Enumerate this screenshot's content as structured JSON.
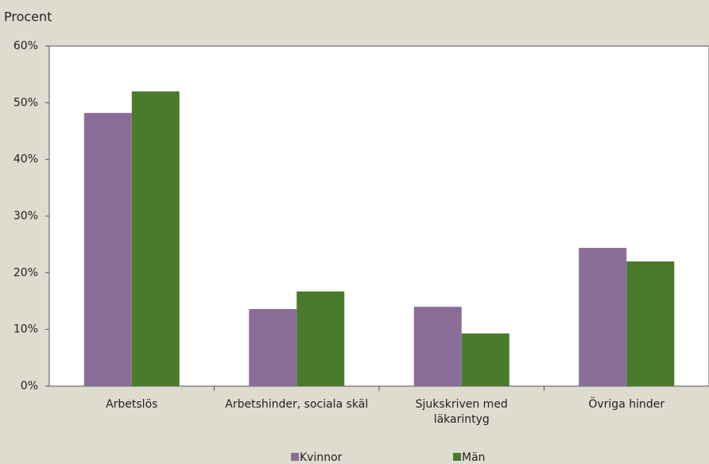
{
  "chart_data": {
    "type": "bar",
    "y_axis_label": "Procent",
    "categories": [
      "Arbetslös",
      "Arbetshinder, sociala skäl",
      "Sjukskriven med läkarintyg",
      "Övriga hinder"
    ],
    "series": [
      {
        "name": "Kvinnor",
        "color": "#8a6e99",
        "values": [
          48.2,
          13.6,
          14.0,
          24.4
        ]
      },
      {
        "name": "Män",
        "color": "#4a7a2c",
        "values": [
          52.0,
          16.7,
          9.3,
          22.0
        ]
      }
    ],
    "ylim": [
      0,
      60
    ],
    "yticks": [
      {
        "value": 0,
        "label": "0%"
      },
      {
        "value": 10,
        "label": "10%"
      },
      {
        "value": 20,
        "label": "20%"
      },
      {
        "value": 30,
        "label": "30%"
      },
      {
        "value": 40,
        "label": "40%"
      },
      {
        "value": 50,
        "label": "50%"
      },
      {
        "value": 60,
        "label": "60%"
      }
    ],
    "grid": false,
    "legend": "bottom"
  }
}
